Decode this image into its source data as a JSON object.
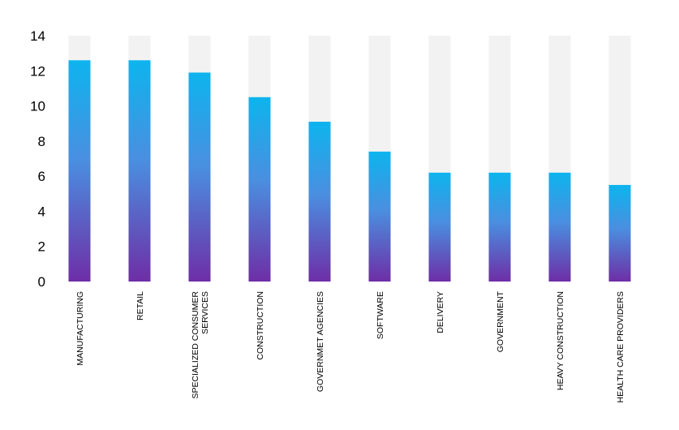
{
  "chart_data": {
    "type": "bar",
    "title": "",
    "xlabel": "",
    "ylabel": "",
    "ylim": [
      0,
      14
    ],
    "yticks": [
      0,
      2,
      4,
      6,
      8,
      10,
      12,
      14
    ],
    "grid": false,
    "legend": "none",
    "categories": [
      [
        "MANUFACTURING"
      ],
      [
        "RETAIL"
      ],
      [
        "SPECIALIZED CONSUMER",
        "SERVICES"
      ],
      [
        "CONSTRUCTION"
      ],
      [
        "GOVERNMET AGENCIES"
      ],
      [
        "SOFTWARE"
      ],
      [
        "DELIVERY"
      ],
      [
        "GOVERNMENT"
      ],
      [
        "HEAVY CONSTRUCTION"
      ],
      [
        "HEALTH CARE PROVIDERS"
      ]
    ],
    "values": [
      12.6,
      12.6,
      11.9,
      10.5,
      9.1,
      7.4,
      6.2,
      6.2,
      6.2,
      5.5
    ],
    "colors": {
      "bar_top": "#0db4ee",
      "bar_mid": "#4a8fe0",
      "bar_bottom": "#6e2ea6",
      "track": "#f2f2f2",
      "text": "#000000"
    }
  }
}
